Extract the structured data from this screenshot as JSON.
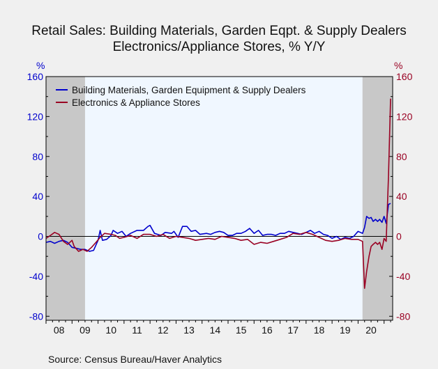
{
  "title_line1": "Retail Sales: Building Materials, Garden Eqpt. & Supply Dealers",
  "title_line2": "Electronics/Appliance Stores, % Y/Y",
  "source": "Source:  Census Bureau/Haver Analytics",
  "colors": {
    "blue": "#0000cc",
    "red": "#990022",
    "recession": "#c8c8c8",
    "plot_bg": "#f0f7ff"
  },
  "chart_data": {
    "type": "line",
    "left_axis_unit": "%",
    "right_axis_unit": "%",
    "ylim": [
      -84,
      160
    ],
    "yticks": [
      160,
      120,
      80,
      40,
      0,
      -40,
      -80
    ],
    "xlim": [
      2008.0,
      2021.33
    ],
    "xtick_labels": [
      "08",
      "09",
      "10",
      "11",
      "12",
      "13",
      "14",
      "15",
      "16",
      "17",
      "18",
      "19",
      "20"
    ],
    "recession_shading": [
      [
        2008.0,
        2009.5
      ],
      [
        2020.17,
        2021.33
      ]
    ],
    "series": [
      {
        "name": "Building Materials, Garden Equipment & Supply Dealers",
        "color": "#0000cc",
        "points": [
          [
            2008.0,
            -6
          ],
          [
            2008.17,
            -5
          ],
          [
            2008.33,
            -7
          ],
          [
            2008.5,
            -5
          ],
          [
            2008.67,
            -4
          ],
          [
            2008.83,
            -6
          ],
          [
            2009.0,
            -11
          ],
          [
            2009.17,
            -12
          ],
          [
            2009.33,
            -13
          ],
          [
            2009.5,
            -13
          ],
          [
            2009.67,
            -15
          ],
          [
            2009.83,
            -14
          ],
          [
            2010.0,
            -4
          ],
          [
            2010.08,
            6
          ],
          [
            2010.17,
            -4
          ],
          [
            2010.33,
            -3
          ],
          [
            2010.5,
            1
          ],
          [
            2010.58,
            6
          ],
          [
            2010.75,
            3
          ],
          [
            2010.92,
            5
          ],
          [
            2011.08,
            0
          ],
          [
            2011.25,
            3
          ],
          [
            2011.5,
            6
          ],
          [
            2011.75,
            6
          ],
          [
            2011.92,
            10
          ],
          [
            2012.0,
            11
          ],
          [
            2012.17,
            3
          ],
          [
            2012.42,
            1
          ],
          [
            2012.58,
            4
          ],
          [
            2012.83,
            3
          ],
          [
            2012.92,
            5
          ],
          [
            2013.08,
            -1
          ],
          [
            2013.25,
            10
          ],
          [
            2013.42,
            10
          ],
          [
            2013.58,
            5
          ],
          [
            2013.75,
            6
          ],
          [
            2013.92,
            2
          ],
          [
            2014.17,
            3
          ],
          [
            2014.33,
            2
          ],
          [
            2014.5,
            4
          ],
          [
            2014.67,
            5
          ],
          [
            2014.83,
            4
          ],
          [
            2015.0,
            1
          ],
          [
            2015.17,
            1
          ],
          [
            2015.33,
            3
          ],
          [
            2015.5,
            3
          ],
          [
            2015.67,
            5
          ],
          [
            2015.83,
            8
          ],
          [
            2016.0,
            3
          ],
          [
            2016.17,
            6
          ],
          [
            2016.33,
            1
          ],
          [
            2016.5,
            2
          ],
          [
            2016.67,
            2
          ],
          [
            2016.83,
            1
          ],
          [
            2017.0,
            3
          ],
          [
            2017.17,
            3
          ],
          [
            2017.33,
            5
          ],
          [
            2017.5,
            4
          ],
          [
            2017.67,
            3
          ],
          [
            2017.83,
            2
          ],
          [
            2018.0,
            4
          ],
          [
            2018.17,
            6
          ],
          [
            2018.33,
            3
          ],
          [
            2018.5,
            5
          ],
          [
            2018.67,
            2
          ],
          [
            2018.83,
            1
          ],
          [
            2019.0,
            -2
          ],
          [
            2019.17,
            0
          ],
          [
            2019.33,
            -3
          ],
          [
            2019.5,
            -1
          ],
          [
            2019.67,
            -2
          ],
          [
            2019.83,
            0
          ],
          [
            2020.0,
            5
          ],
          [
            2020.17,
            3
          ],
          [
            2020.25,
            9
          ],
          [
            2020.33,
            20
          ],
          [
            2020.42,
            18
          ],
          [
            2020.5,
            19
          ],
          [
            2020.58,
            15
          ],
          [
            2020.67,
            17
          ],
          [
            2020.75,
            15
          ],
          [
            2020.83,
            17
          ],
          [
            2020.92,
            14
          ],
          [
            2021.0,
            20
          ],
          [
            2021.08,
            13
          ],
          [
            2021.17,
            32
          ],
          [
            2021.25,
            33
          ]
        ]
      },
      {
        "name": "Electronics & Appliance Stores",
        "color": "#990022",
        "points": [
          [
            2008.0,
            -2
          ],
          [
            2008.17,
            1
          ],
          [
            2008.33,
            4
          ],
          [
            2008.5,
            2
          ],
          [
            2008.67,
            -5
          ],
          [
            2008.83,
            -8
          ],
          [
            2009.0,
            -4
          ],
          [
            2009.08,
            -10
          ],
          [
            2009.25,
            -15
          ],
          [
            2009.42,
            -13
          ],
          [
            2009.58,
            -15
          ],
          [
            2009.75,
            -11
          ],
          [
            2009.92,
            -6
          ],
          [
            2010.08,
            -1
          ],
          [
            2010.25,
            3
          ],
          [
            2010.5,
            2
          ],
          [
            2010.67,
            1
          ],
          [
            2010.83,
            -2
          ],
          [
            2011.0,
            -1
          ],
          [
            2011.25,
            1
          ],
          [
            2011.5,
            -2
          ],
          [
            2011.75,
            2
          ],
          [
            2012.0,
            2
          ],
          [
            2012.25,
            0
          ],
          [
            2012.5,
            2
          ],
          [
            2012.75,
            -2
          ],
          [
            2013.0,
            0
          ],
          [
            2013.25,
            -1
          ],
          [
            2013.5,
            -2
          ],
          [
            2013.75,
            -4
          ],
          [
            2014.0,
            -3
          ],
          [
            2014.25,
            -2
          ],
          [
            2014.5,
            -3
          ],
          [
            2014.75,
            0
          ],
          [
            2015.0,
            -1
          ],
          [
            2015.25,
            -2
          ],
          [
            2015.5,
            -4
          ],
          [
            2015.75,
            -3
          ],
          [
            2016.0,
            -8
          ],
          [
            2016.25,
            -6
          ],
          [
            2016.5,
            -7
          ],
          [
            2016.75,
            -5
          ],
          [
            2017.0,
            -3
          ],
          [
            2017.25,
            -1
          ],
          [
            2017.5,
            3
          ],
          [
            2017.75,
            2
          ],
          [
            2018.0,
            4
          ],
          [
            2018.25,
            2
          ],
          [
            2018.5,
            -1
          ],
          [
            2018.75,
            -4
          ],
          [
            2019.0,
            -5
          ],
          [
            2019.25,
            -4
          ],
          [
            2019.5,
            -2
          ],
          [
            2019.75,
            -3
          ],
          [
            2020.0,
            -3
          ],
          [
            2020.17,
            -5
          ],
          [
            2020.25,
            -52
          ],
          [
            2020.33,
            -35
          ],
          [
            2020.42,
            -20
          ],
          [
            2020.5,
            -10
          ],
          [
            2020.58,
            -8
          ],
          [
            2020.67,
            -6
          ],
          [
            2020.75,
            -8
          ],
          [
            2020.83,
            -6
          ],
          [
            2020.92,
            -13
          ],
          [
            2021.0,
            -2
          ],
          [
            2021.08,
            -5
          ],
          [
            2021.17,
            60
          ],
          [
            2021.25,
            138
          ]
        ]
      }
    ]
  }
}
